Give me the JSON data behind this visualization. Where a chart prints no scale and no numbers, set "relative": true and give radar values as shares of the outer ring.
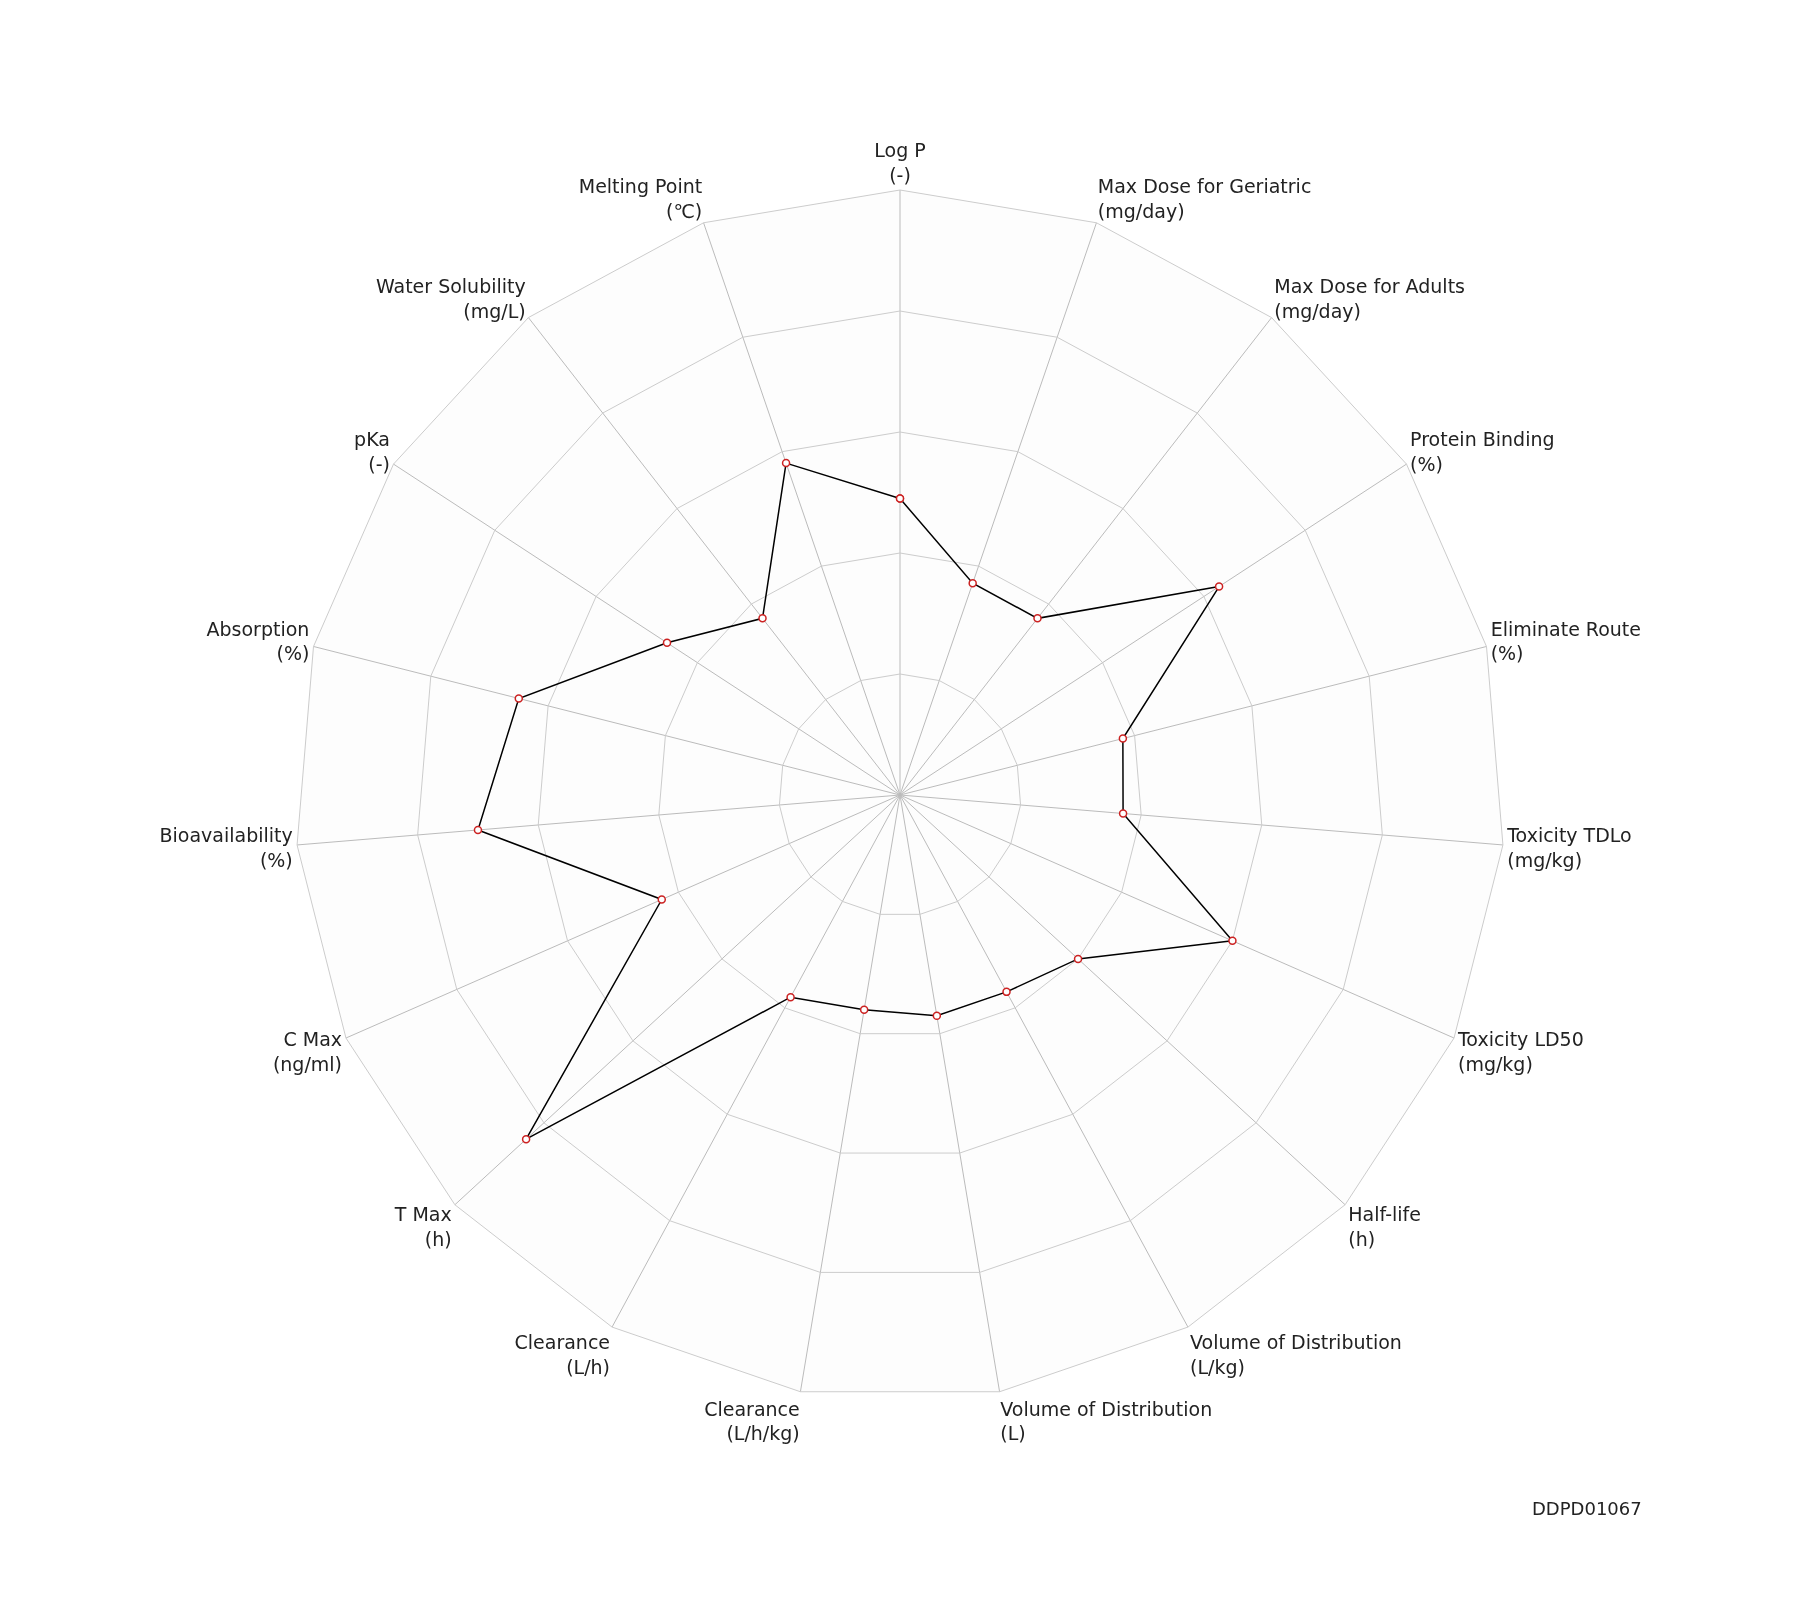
{
  "chart_data": {
    "type": "radar",
    "relative": true,
    "grid": true,
    "marker": "circle",
    "line_style": "solid",
    "categories": [
      "Log P\n(-)",
      "Max Dose for Geriatric\n(mg/day)",
      "Max Dose for Adults\n(mg/day)",
      "Protein Binding\n(%)",
      "Eliminate Route\n(%)",
      "Toxicity TDLo\n(mg/kg)",
      "Toxicity LD50\n(mg/kg)",
      "Half-life\n(h)",
      "Volume of Distribution\n(L/kg)",
      "Volume of Distribution\n(L)",
      "Clearance\n(L/h/kg)",
      "Clearance\n(L/h)",
      "T Max\n(h)",
      "C Max\n(ng/ml)",
      "Bioavailability\n(%)",
      "Absorption\n(%)",
      "pKa\n(-)",
      "Water Solubility\n(mg/L)",
      "Melting Point\n(℃)"
    ],
    "series": [
      {
        "color": "#000000",
        "values": [
          0.49,
          0.37,
          0.37,
          0.63,
          0.38,
          0.37,
          0.6,
          0.4,
          0.37,
          0.37,
          0.36,
          0.38,
          0.84,
          0.43,
          0.7,
          0.65,
          0.46,
          0.37,
          0.58
        ]
      }
    ],
    "annotations": [
      "DDPD01067"
    ]
  }
}
